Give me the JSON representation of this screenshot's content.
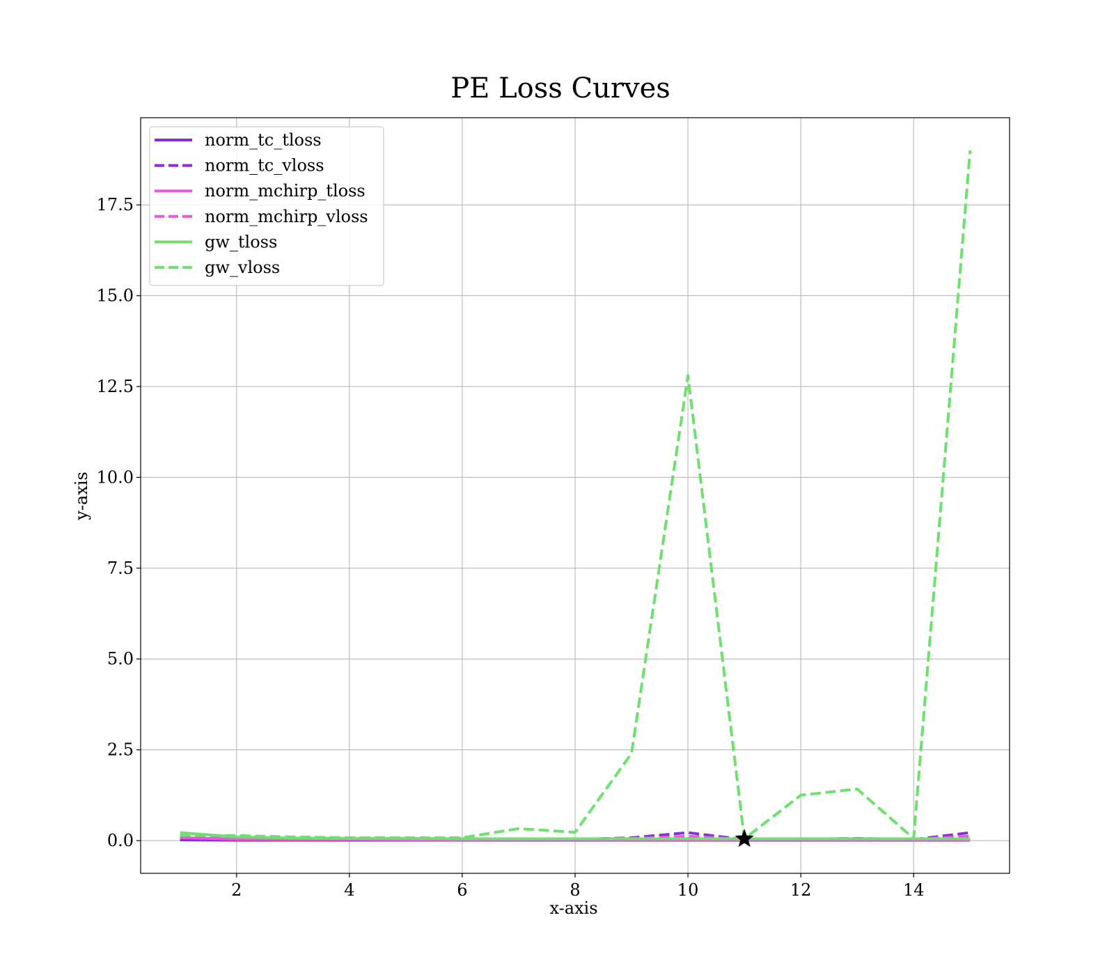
{
  "chart_data": {
    "type": "line",
    "title": "PE Loss Curves",
    "xlabel": "x-axis",
    "ylabel": "y-axis",
    "xlim": [
      0.3,
      15.7
    ],
    "ylim": [
      -0.9,
      19.9
    ],
    "xticks": [
      2,
      4,
      6,
      8,
      10,
      12,
      14
    ],
    "yticks": [
      0.0,
      2.5,
      5.0,
      7.5,
      10.0,
      12.5,
      15.0,
      17.5
    ],
    "grid": true,
    "legend_position": "upper-left",
    "x": [
      1,
      2,
      3,
      4,
      5,
      6,
      7,
      8,
      9,
      10,
      11,
      12,
      13,
      14,
      15
    ],
    "series": [
      {
        "name": "norm_tc_tloss",
        "color": "#8a2be2",
        "dash": "solid",
        "values": [
          0.02,
          0.01,
          0.01,
          0.01,
          0.01,
          0.01,
          0.01,
          0.01,
          0.01,
          0.01,
          0.01,
          0.01,
          0.01,
          0.01,
          0.01
        ]
      },
      {
        "name": "norm_tc_vloss",
        "color": "#8a2be2",
        "dash": "dashed",
        "values": [
          0.02,
          0.02,
          0.02,
          0.02,
          0.02,
          0.02,
          0.03,
          0.03,
          0.08,
          0.22,
          0.03,
          0.04,
          0.06,
          0.03,
          0.22
        ]
      },
      {
        "name": "norm_mchirp_tloss",
        "color": "#ee55dd",
        "dash": "solid",
        "values": [
          0.08,
          0.04,
          0.03,
          0.03,
          0.02,
          0.02,
          0.02,
          0.02,
          0.02,
          0.02,
          0.02,
          0.02,
          0.02,
          0.02,
          0.02
        ]
      },
      {
        "name": "norm_mchirp_vloss",
        "color": "#ee55dd",
        "dash": "dashed",
        "values": [
          0.12,
          0.06,
          0.04,
          0.04,
          0.04,
          0.04,
          0.04,
          0.04,
          0.06,
          0.12,
          0.04,
          0.04,
          0.05,
          0.04,
          0.12
        ]
      },
      {
        "name": "gw_tloss",
        "color": "#6ee06e",
        "dash": "solid",
        "values": [
          0.22,
          0.1,
          0.07,
          0.06,
          0.06,
          0.05,
          0.05,
          0.05,
          0.05,
          0.05,
          0.05,
          0.05,
          0.05,
          0.05,
          0.05
        ]
      },
      {
        "name": "gw_vloss",
        "color": "#6ee06e",
        "dash": "dashed",
        "values": [
          0.15,
          0.14,
          0.1,
          0.08,
          0.08,
          0.08,
          0.33,
          0.23,
          2.4,
          12.8,
          0.05,
          1.25,
          1.42,
          0.06,
          19.0
        ]
      }
    ],
    "marker": {
      "symbol": "star",
      "x": 11,
      "y": 0.05,
      "color": "#000000"
    }
  }
}
